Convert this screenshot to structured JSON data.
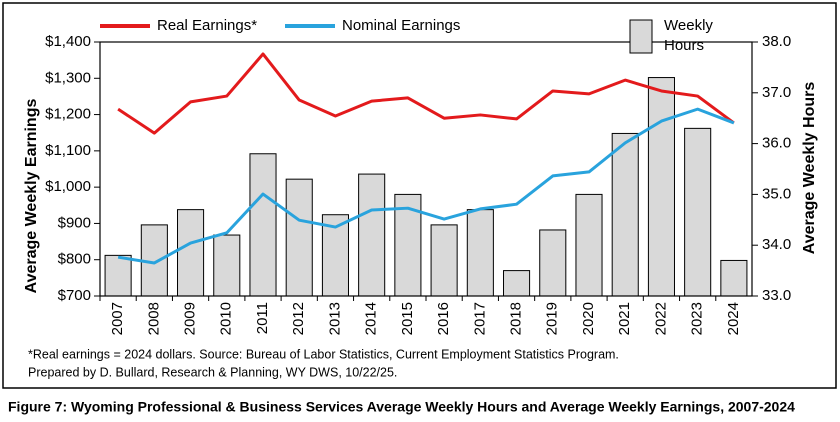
{
  "chart_data": {
    "type": "bar-line",
    "caption": "Figure 7: Wyoming Professional & Business Services Average Weekly Hours and Average Weekly Earnings, 2007-2024",
    "notes": [
      "*Real earnings = 2024 dollars. Source: Bureau of Labor Statistics, Current Employment Statistics Program.",
      "Prepared by D. Bullard, Research & Planning, WY DWS, 10/22/25."
    ],
    "ylabel": "Average Weekly Earnings",
    "y2label": "Average Weekly Hours",
    "categories": [
      "2007",
      "2008",
      "2009",
      "2010",
      "2011",
      "2012",
      "2013",
      "2014",
      "2015",
      "2016",
      "2017",
      "2018",
      "2019",
      "2020",
      "2021",
      "2022",
      "2023",
      "2024"
    ],
    "series": [
      {
        "name": "Real Earnings*",
        "type": "line",
        "color": "#e31a1c",
        "values": [
          1215,
          1149,
          1235,
          1251,
          1367,
          1240,
          1196,
          1237,
          1246,
          1190,
          1199,
          1188,
          1265,
          1257,
          1295,
          1265,
          1251,
          1177
        ]
      },
      {
        "name": "Nominal Earnings",
        "type": "line",
        "color": "#29a3dd",
        "values": [
          807,
          791,
          846,
          874,
          981,
          909,
          890,
          937,
          942,
          912,
          940,
          953,
          1031,
          1042,
          1122,
          1182,
          1215,
          1177
        ]
      },
      {
        "name": "Weekly Hours",
        "type": "bar",
        "axis": "y2",
        "color": "#d9d9d9",
        "values": [
          33.8,
          34.4,
          34.7,
          34.2,
          35.8,
          35.3,
          34.6,
          35.4,
          35.0,
          34.4,
          34.7,
          33.5,
          34.3,
          35.0,
          36.2,
          37.3,
          36.3,
          33.7
        ]
      }
    ],
    "ylim": [
      700,
      1400
    ],
    "yticks": [
      {
        "value": 700,
        "label": "$700"
      },
      {
        "value": 800,
        "label": "$800"
      },
      {
        "value": 900,
        "label": "$900"
      },
      {
        "value": 1000,
        "label": "$1,000"
      },
      {
        "value": 1100,
        "label": "$1,100"
      },
      {
        "value": 1200,
        "label": "$1,200"
      },
      {
        "value": 1300,
        "label": "$1,300"
      },
      {
        "value": 1400,
        "label": "$1,400"
      }
    ],
    "y2lim": [
      33,
      38
    ],
    "y2ticks": [
      {
        "value": 33,
        "label": "33.0"
      },
      {
        "value": 34,
        "label": "34.0"
      },
      {
        "value": 35,
        "label": "35.0"
      },
      {
        "value": 36,
        "label": "36.0"
      },
      {
        "value": 37,
        "label": "37.0"
      },
      {
        "value": 38,
        "label": "38.0"
      }
    ]
  }
}
